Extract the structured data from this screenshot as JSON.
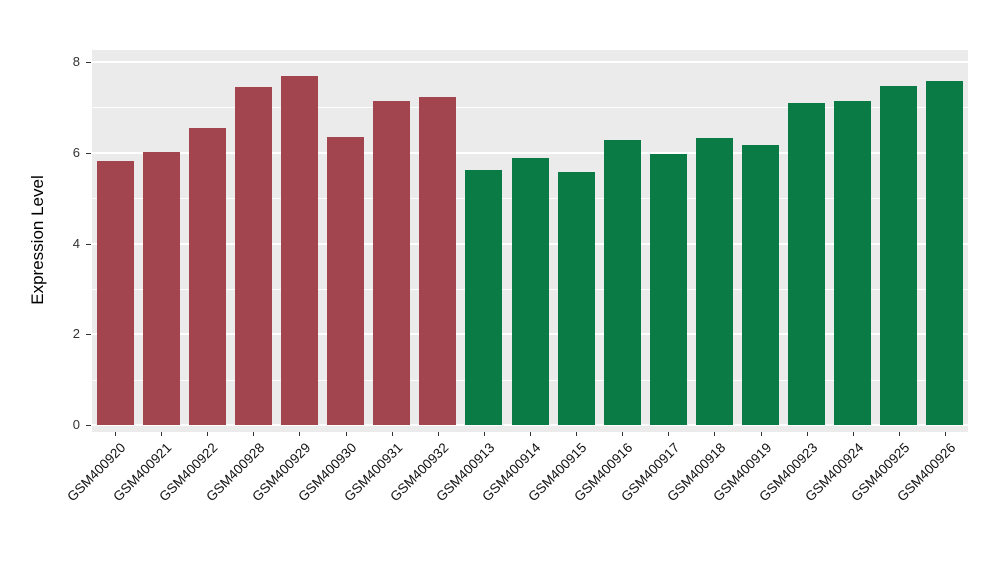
{
  "figure": {
    "background": "#FFFFFF",
    "panel_background": "#EBEBEB",
    "gridline_color": "#FFFFFF",
    "axis_text_color": "#333333"
  },
  "chart_data": {
    "type": "bar",
    "title": "",
    "xlabel": "",
    "ylabel": "Expression Level",
    "ylim": [
      0,
      8
    ],
    "yticks": [
      0,
      2,
      4,
      6,
      8
    ],
    "grid": "white major and minor horizontal gridlines on gray panel",
    "legend": "none",
    "categories": [
      "GSM400920",
      "GSM400921",
      "GSM400922",
      "GSM400928",
      "GSM400929",
      "GSM400930",
      "GSM400931",
      "GSM400932",
      "GSM400913",
      "GSM400914",
      "GSM400915",
      "GSM400916",
      "GSM400917",
      "GSM400918",
      "GSM400919",
      "GSM400923",
      "GSM400924",
      "GSM400925",
      "GSM400926"
    ],
    "values": [
      5.82,
      6.02,
      6.55,
      7.45,
      7.7,
      6.35,
      7.15,
      7.22,
      5.62,
      5.88,
      5.57,
      6.28,
      5.97,
      6.33,
      6.18,
      7.1,
      7.13,
      7.48,
      7.58
    ],
    "bar_colors": [
      "#A2454F",
      "#A2454F",
      "#A2454F",
      "#A2454F",
      "#A2454F",
      "#A2454F",
      "#A2454F",
      "#A2454F",
      "#0A7B44",
      "#0A7B44",
      "#0A7B44",
      "#0A7B44",
      "#0A7B44",
      "#0A7B44",
      "#0A7B44",
      "#0A7B44",
      "#0A7B44",
      "#0A7B44",
      "#0A7B44"
    ],
    "groups": [
      {
        "name": "group-red",
        "color": "#A2454F",
        "categories": [
          "GSM400920",
          "GSM400921",
          "GSM400922",
          "GSM400928",
          "GSM400929",
          "GSM400930",
          "GSM400931",
          "GSM400932"
        ]
      },
      {
        "name": "group-green",
        "color": "#0A7B44",
        "categories": [
          "GSM400913",
          "GSM400914",
          "GSM400915",
          "GSM400916",
          "GSM400917",
          "GSM400918",
          "GSM400919",
          "GSM400923",
          "GSM400924",
          "GSM400925",
          "GSM400926"
        ]
      }
    ]
  }
}
